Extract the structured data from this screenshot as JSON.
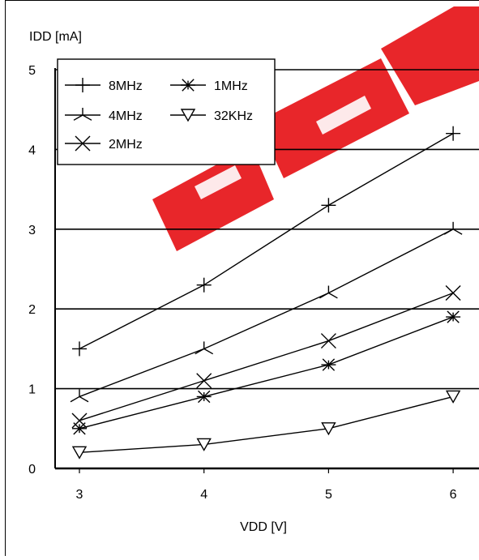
{
  "chart_data": {
    "type": "line",
    "xlabel": "VDD [V]",
    "ylabel": "IDD [mA]",
    "xlim": [
      2.8,
      6.2
    ],
    "ylim": [
      0,
      5
    ],
    "xticks": [
      3,
      4,
      5,
      6
    ],
    "yticks": [
      0,
      1,
      2,
      3,
      4,
      5
    ],
    "grid": "horizontal",
    "legend_position": "top-left",
    "x": [
      3,
      4,
      5,
      6
    ],
    "series": [
      {
        "name": "8MHz",
        "marker": "plus",
        "values": [
          1.5,
          2.3,
          3.3,
          4.2
        ]
      },
      {
        "name": "4MHz",
        "marker": "tri-arm",
        "values": [
          0.9,
          1.5,
          2.2,
          3.0
        ]
      },
      {
        "name": "2MHz",
        "marker": "cross",
        "values": [
          0.6,
          1.1,
          1.6,
          2.2
        ]
      },
      {
        "name": "1MHz",
        "marker": "asterisk",
        "values": [
          0.5,
          0.9,
          1.3,
          1.9
        ]
      },
      {
        "name": "32KHz",
        "marker": "triangle",
        "values": [
          0.2,
          0.3,
          0.5,
          0.9
        ]
      }
    ],
    "watermark": {
      "color": "#e8262a"
    }
  }
}
